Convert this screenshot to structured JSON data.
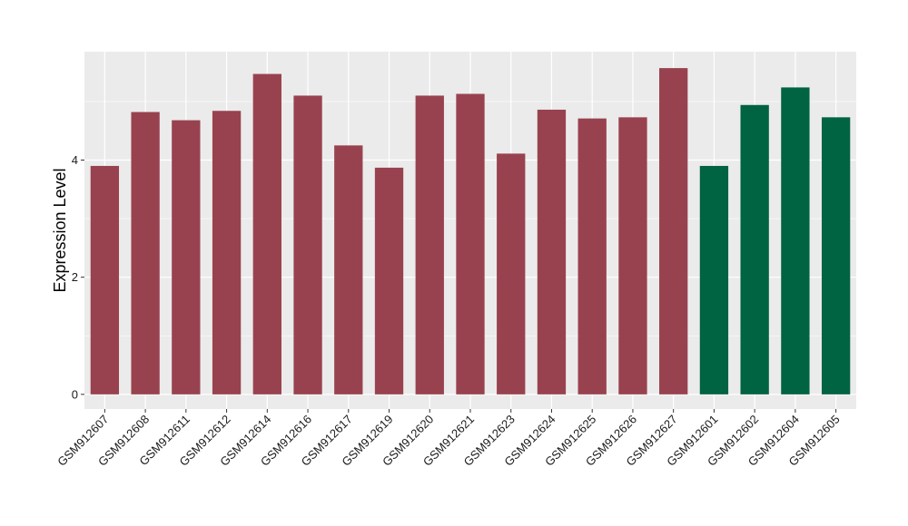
{
  "chart_data": {
    "type": "bar",
    "title": "",
    "xlabel": "",
    "ylabel": "Expression Level",
    "ylim": [
      -0.25,
      5.85
    ],
    "yticks": [
      0,
      2,
      4
    ],
    "grid": true,
    "legend": "none",
    "panel_background": "#ebebeb",
    "grid_color": "#ffffff",
    "categories": [
      "GSM912607",
      "GSM912608",
      "GSM912611",
      "GSM912612",
      "GSM912614",
      "GSM912616",
      "GSM912617",
      "GSM912619",
      "GSM912620",
      "GSM912621",
      "GSM912623",
      "GSM912624",
      "GSM912625",
      "GSM912626",
      "GSM912627",
      "GSM912601",
      "GSM912602",
      "GSM912604",
      "GSM912605"
    ],
    "values": [
      3.9,
      4.82,
      4.68,
      4.84,
      5.47,
      5.1,
      4.25,
      3.87,
      5.1,
      5.13,
      4.11,
      4.86,
      4.71,
      4.73,
      5.57,
      3.9,
      4.94,
      5.24,
      4.73
    ],
    "bar_colors": [
      "#99424f",
      "#99424f",
      "#99424f",
      "#99424f",
      "#99424f",
      "#99424f",
      "#99424f",
      "#99424f",
      "#99424f",
      "#99424f",
      "#99424f",
      "#99424f",
      "#99424f",
      "#99424f",
      "#99424f",
      "#006342",
      "#006342",
      "#006342",
      "#006342"
    ]
  }
}
